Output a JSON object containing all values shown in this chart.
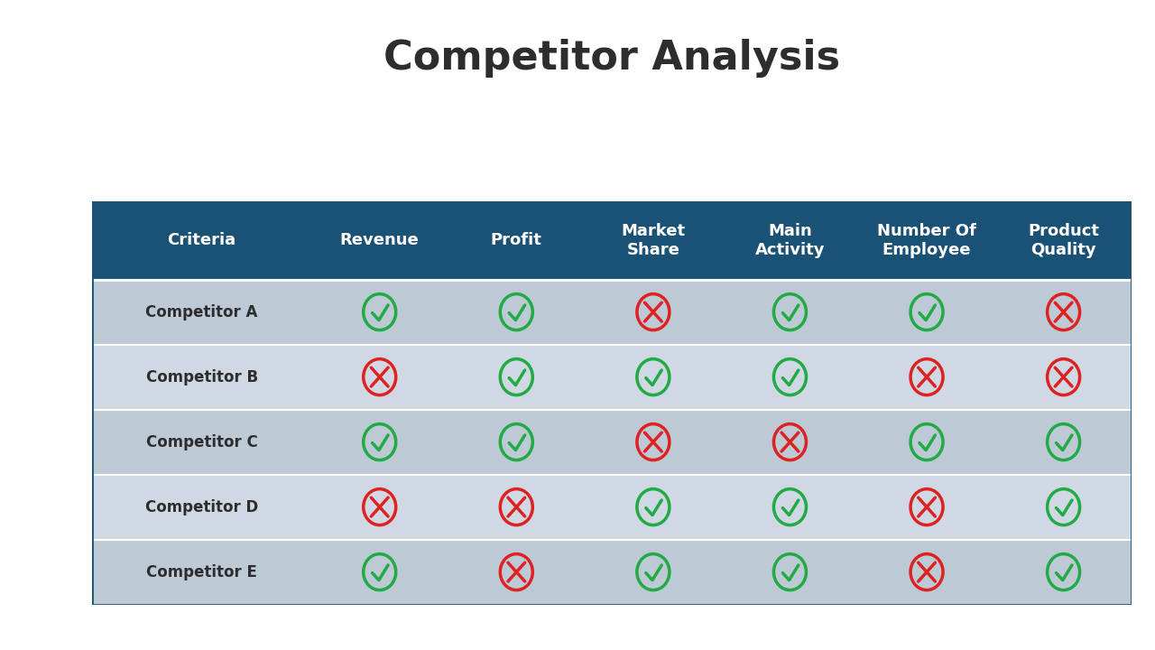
{
  "title": "Competitor Analysis",
  "title_fontsize": 32,
  "title_fontweight": "bold",
  "title_color": "#2d2d2d",
  "background_color": "#ffffff",
  "header_bg_color": "#1a5276",
  "header_text_color": "#ffffff",
  "header_fontsize": 13,
  "header_fontweight": "bold",
  "row_colors": [
    "#bec9d6",
    "#d0d8e4"
  ],
  "criteria_label_fontsize": 12,
  "criteria_label_fontweight": "bold",
  "criteria_label_color": "#2d2d2d",
  "columns": [
    "Criteria",
    "Revenue",
    "Profit",
    "Market\nShare",
    "Main\nActivity",
    "Number Of\nEmployee",
    "Product\nQuality"
  ],
  "col_widths": [
    1.6,
    1.0,
    1.0,
    1.0,
    1.0,
    1.0,
    1.0
  ],
  "rows": [
    "Competitor A",
    "Competitor B",
    "Competitor C",
    "Competitor D",
    "Competitor E"
  ],
  "data": [
    [
      1,
      1,
      0,
      1,
      1,
      0
    ],
    [
      0,
      1,
      1,
      1,
      0,
      0
    ],
    [
      1,
      1,
      0,
      0,
      1,
      1
    ],
    [
      0,
      0,
      1,
      1,
      0,
      1
    ],
    [
      1,
      0,
      1,
      1,
      0,
      1
    ]
  ],
  "check_color": "#22aa44",
  "cross_color": "#dd2222",
  "separator_color": "#ffffff",
  "border_color": "#1a5276"
}
